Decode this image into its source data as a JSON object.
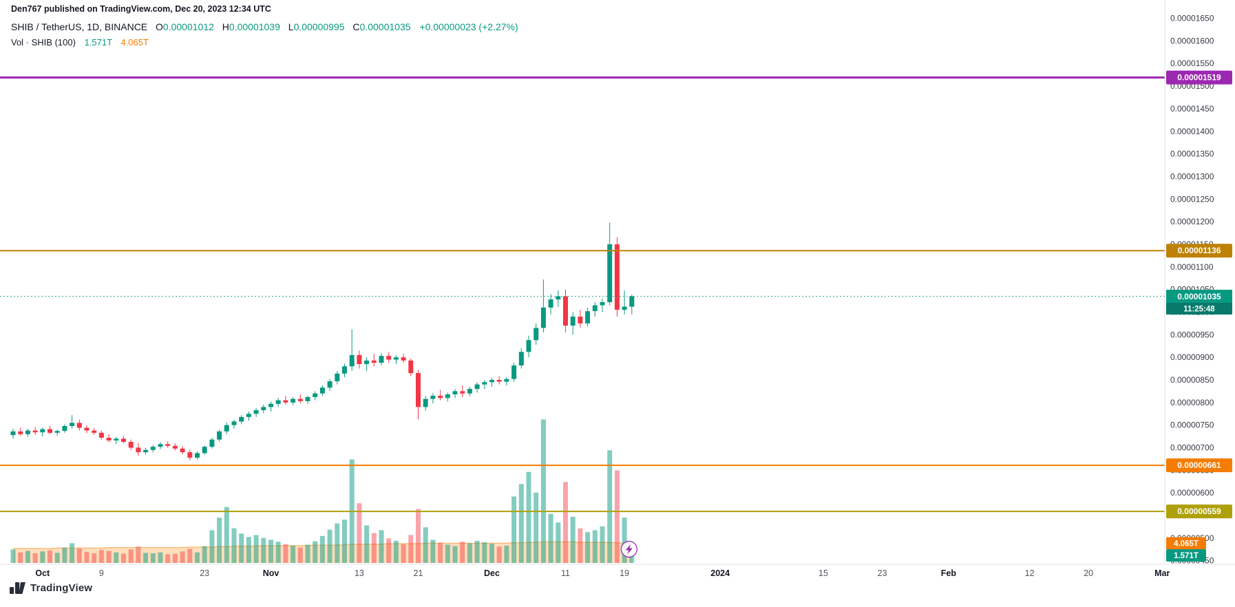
{
  "attribution": "Den767 published on TradingView.com, Dec 20, 2023 12:34 UTC",
  "header": {
    "symbol": "SHIB / TetherUS, 1D, BINANCE",
    "o_label": "O",
    "o": "0.00001012",
    "h_label": "H",
    "h": "0.00001039",
    "l_label": "L",
    "l": "0.00000995",
    "c_label": "C",
    "c": "0.00001035",
    "change": "+0.00000023 (+2.27%)"
  },
  "volume_header": {
    "label": "Vol · SHIB (100)",
    "current": "1.571T",
    "ma": "4.065T"
  },
  "footer": {
    "brand": "TradingView"
  },
  "colors": {
    "up": "#089981",
    "down": "#f23645",
    "vol_up": "rgba(8,153,129,0.5)",
    "vol_down": "rgba(242,54,69,0.45)",
    "ma_fill": "rgba(255,160,60,0.35)",
    "ma_line": "rgba(245,124,0,0.45)",
    "axis_text": "#363a45",
    "grid": "#e0e3eb",
    "countdown_bg": "#077a6b"
  },
  "chart_data": {
    "type": "candlestick",
    "title": "SHIB / TetherUS, 1D, BINANCE",
    "interval": "1D",
    "start_date": "2023-09-27",
    "price_unit": "1e-8 USDT (values below are price * 1e8)",
    "volume_unit": "T (1e12 SHIB)",
    "y_axis": {
      "min": 450,
      "max": 1650,
      "step": 50,
      "plot_min": 445,
      "plot_max": 1660
    },
    "x_ticks": [
      {
        "label": "Oct",
        "day": 4,
        "major": true
      },
      {
        "label": "9",
        "day": 12,
        "major": false
      },
      {
        "label": "23",
        "day": 26,
        "major": false
      },
      {
        "label": "Nov",
        "day": 35,
        "major": true
      },
      {
        "label": "13",
        "day": 47,
        "major": false
      },
      {
        "label": "21",
        "day": 55,
        "major": false
      },
      {
        "label": "Dec",
        "day": 65,
        "major": true
      },
      {
        "label": "11",
        "day": 75,
        "major": false
      },
      {
        "label": "19",
        "day": 83,
        "major": false
      },
      {
        "label": "2024",
        "day": 96,
        "major": true
      },
      {
        "label": "15",
        "day": 110,
        "major": false
      },
      {
        "label": "23",
        "day": 118,
        "major": false
      },
      {
        "label": "Feb",
        "day": 127,
        "major": true
      },
      {
        "label": "12",
        "day": 138,
        "major": false
      },
      {
        "label": "20",
        "day": 146,
        "major": false
      },
      {
        "label": "Mar",
        "day": 156,
        "major": true
      }
    ],
    "levels": [
      {
        "value": 1519,
        "label": "0.00001519",
        "color": "#9c27b0",
        "width": 3
      },
      {
        "value": 1136,
        "label": "0.00001136",
        "color": "#bf8104",
        "width": 2
      },
      {
        "value": 661,
        "label": "0.00000661",
        "color": "#f57c00",
        "width": 2
      },
      {
        "value": 559,
        "label": "0.00000559",
        "color": "#aea00a",
        "width": 2
      }
    ],
    "last_price": {
      "value": 1035,
      "label": "0.00001035",
      "countdown": "11:25:48",
      "color": "#089981"
    },
    "volume_labels": [
      {
        "text": "4.065T",
        "color": "#f57c00",
        "value": 4.065
      },
      {
        "text": "1.571T",
        "color": "#089981",
        "value": 1.571
      }
    ],
    "candles": [
      [
        728,
        742,
        720,
        736,
        2.8
      ],
      [
        736,
        744,
        726,
        730,
        2.2
      ],
      [
        730,
        742,
        724,
        738,
        2.5
      ],
      [
        738,
        746,
        728,
        734,
        2.0
      ],
      [
        734,
        745,
        725,
        741,
        2.4
      ],
      [
        741,
        748,
        730,
        733,
        2.6
      ],
      [
        733,
        740,
        726,
        737,
        2.1
      ],
      [
        737,
        752,
        733,
        748,
        3.2
      ],
      [
        748,
        772,
        742,
        755,
        4.1
      ],
      [
        755,
        762,
        738,
        744,
        3.0
      ],
      [
        744,
        750,
        732,
        738,
        2.3
      ],
      [
        738,
        744,
        728,
        733,
        2.0
      ],
      [
        733,
        738,
        718,
        722,
        2.7
      ],
      [
        722,
        730,
        712,
        716,
        2.5
      ],
      [
        716,
        724,
        708,
        720,
        2.2
      ],
      [
        720,
        726,
        710,
        713,
        1.9
      ],
      [
        713,
        718,
        695,
        700,
        2.8
      ],
      [
        700,
        710,
        682,
        690,
        3.4
      ],
      [
        690,
        700,
        685,
        695,
        2.1
      ],
      [
        695,
        706,
        690,
        702,
        2.0
      ],
      [
        702,
        712,
        697,
        708,
        2.2
      ],
      [
        708,
        714,
        700,
        704,
        1.8
      ],
      [
        704,
        710,
        694,
        698,
        1.9
      ],
      [
        698,
        703,
        685,
        690,
        2.4
      ],
      [
        690,
        696,
        672,
        678,
        2.9
      ],
      [
        678,
        692,
        674,
        688,
        2.2
      ],
      [
        688,
        705,
        684,
        702,
        3.5
      ],
      [
        702,
        722,
        698,
        718,
        6.8
      ],
      [
        718,
        740,
        714,
        736,
        9.4
      ],
      [
        736,
        756,
        730,
        750,
        11.6
      ],
      [
        750,
        762,
        742,
        758,
        7.2
      ],
      [
        758,
        772,
        752,
        768,
        6.1
      ],
      [
        768,
        780,
        760,
        775,
        5.4
      ],
      [
        775,
        788,
        768,
        783,
        5.8
      ],
      [
        783,
        795,
        776,
        790,
        5.2
      ],
      [
        790,
        802,
        780,
        797,
        4.8
      ],
      [
        797,
        810,
        790,
        805,
        4.4
      ],
      [
        805,
        815,
        795,
        800,
        3.9
      ],
      [
        800,
        812,
        794,
        808,
        3.6
      ],
      [
        808,
        818,
        798,
        803,
        3.2
      ],
      [
        803,
        815,
        797,
        812,
        3.8
      ],
      [
        812,
        825,
        805,
        820,
        4.5
      ],
      [
        820,
        838,
        814,
        833,
        5.6
      ],
      [
        833,
        852,
        826,
        847,
        6.9
      ],
      [
        847,
        870,
        840,
        864,
        8.2
      ],
      [
        864,
        886,
        856,
        880,
        9.0
      ],
      [
        880,
        962,
        870,
        905,
        21.5
      ],
      [
        905,
        915,
        875,
        885,
        12.4
      ],
      [
        885,
        900,
        870,
        893,
        7.8
      ],
      [
        893,
        908,
        880,
        888,
        6.2
      ],
      [
        888,
        910,
        882,
        903,
        6.8
      ],
      [
        903,
        912,
        888,
        895,
        5.1
      ],
      [
        895,
        905,
        885,
        900,
        4.6
      ],
      [
        900,
        908,
        888,
        893,
        3.9
      ],
      [
        893,
        898,
        858,
        865,
        5.8
      ],
      [
        865,
        872,
        763,
        790,
        11.2
      ],
      [
        790,
        815,
        782,
        808,
        7.4
      ],
      [
        808,
        820,
        798,
        815,
        4.8
      ],
      [
        815,
        828,
        805,
        810,
        4.2
      ],
      [
        810,
        822,
        802,
        818,
        3.8
      ],
      [
        818,
        830,
        810,
        825,
        3.5
      ],
      [
        825,
        838,
        812,
        820,
        4.4
      ],
      [
        820,
        835,
        814,
        830,
        4.1
      ],
      [
        830,
        845,
        822,
        840,
        4.6
      ],
      [
        840,
        850,
        830,
        845,
        4.3
      ],
      [
        845,
        855,
        835,
        850,
        4.0
      ],
      [
        850,
        858,
        840,
        846,
        3.4
      ],
      [
        846,
        856,
        838,
        852,
        3.6
      ],
      [
        852,
        888,
        846,
        882,
        13.8
      ],
      [
        882,
        920,
        875,
        912,
        16.4
      ],
      [
        912,
        948,
        900,
        938,
        18.9
      ],
      [
        938,
        975,
        928,
        965,
        14.6
      ],
      [
        965,
        1072,
        955,
        1010,
        29.8
      ],
      [
        1010,
        1040,
        995,
        1028,
        10.2
      ],
      [
        1028,
        1048,
        1012,
        1035,
        8.4
      ],
      [
        1035,
        1050,
        955,
        970,
        16.8
      ],
      [
        970,
        1000,
        950,
        990,
        9.6
      ],
      [
        990,
        1005,
        965,
        975,
        7.2
      ],
      [
        975,
        1010,
        968,
        1002,
        6.4
      ],
      [
        1002,
        1022,
        990,
        1015,
        6.8
      ],
      [
        1015,
        1030,
        1000,
        1022,
        7.6
      ],
      [
        1022,
        1198,
        1015,
        1150,
        23.4
      ],
      [
        1150,
        1165,
        990,
        1005,
        19.2
      ],
      [
        1005,
        1048,
        995,
        1012,
        9.4
      ],
      [
        1012,
        1039,
        995,
        1035,
        1.571
      ]
    ],
    "volume_ma": [
      3.0,
      3.0,
      3.0,
      3.0,
      3.0,
      3.0,
      3.1,
      3.1,
      3.1,
      3.1,
      3.1,
      3.1,
      3.1,
      3.2,
      3.2,
      3.2,
      3.2,
      3.2,
      3.2,
      3.2,
      3.2,
      3.2,
      3.2,
      3.2,
      3.3,
      3.3,
      3.3,
      3.3,
      3.4,
      3.4,
      3.5,
      3.5,
      3.5,
      3.5,
      3.6,
      3.6,
      3.6,
      3.6,
      3.6,
      3.6,
      3.6,
      3.7,
      3.7,
      3.7,
      3.7,
      3.8,
      3.9,
      3.9,
      3.9,
      3.9,
      3.9,
      4.0,
      4.0,
      4.0,
      4.0,
      4.0,
      4.1,
      4.1,
      4.1,
      4.1,
      4.1,
      4.1,
      4.1,
      4.1,
      4.1,
      4.1,
      4.1,
      4.1,
      4.2,
      4.2,
      4.3,
      4.3,
      4.4,
      4.4,
      4.4,
      4.4,
      4.4,
      4.3,
      4.3,
      4.3,
      4.3,
      4.3,
      4.2,
      4.1,
      4.065
    ]
  }
}
